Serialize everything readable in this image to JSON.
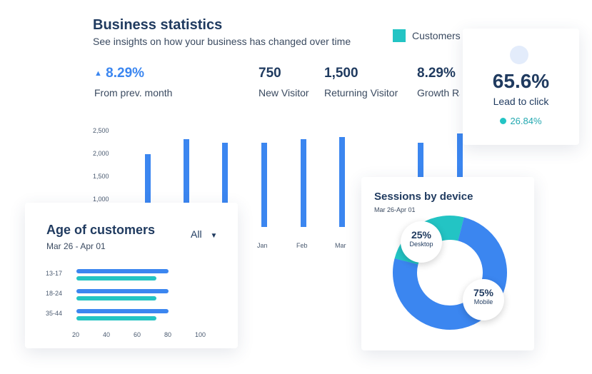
{
  "business": {
    "title": "Business statistics",
    "subtitle": "See insights on how your business has changed over time",
    "legend_label": "Customers",
    "kpis": [
      {
        "value": "8.29%",
        "label": "From prev. month",
        "trend": "up"
      },
      {
        "value": "750",
        "label": "New Visitor"
      },
      {
        "value": "1,500",
        "label": "Returning Visitor"
      },
      {
        "value": "8.29%",
        "label": "Growth Ra"
      }
    ]
  },
  "lead": {
    "value": "65.6%",
    "label": "Lead to click",
    "sub_value": "26.84%"
  },
  "age": {
    "title": "Age of customers",
    "date_range": "Mar 26 - Apr 01",
    "filter_label": "All"
  },
  "sessions": {
    "title": "Sessions by device",
    "date_range": "Mar 26-Apr 01",
    "desktop_pct": "25%",
    "desktop_label": "Desktop",
    "mobile_pct": "75%",
    "mobile_label": "Mobile"
  },
  "chart_data": [
    {
      "type": "bar",
      "title": "",
      "yticks": [
        "2,500",
        "2,000",
        "1,500",
        "1,000"
      ],
      "ylim": [
        0,
        2500
      ],
      "categories": [
        "",
        "",
        "",
        "Jan",
        "Feb",
        "Mar",
        "",
        "",
        ""
      ],
      "values": [
        1900,
        2300,
        2200,
        2200,
        2300,
        2350,
        0,
        2200,
        2450
      ],
      "colors": {
        "bar": "#3b86f0"
      }
    },
    {
      "type": "bar",
      "orientation": "horizontal",
      "categories": [
        "13-17",
        "18-24",
        "35-44"
      ],
      "xticks": [
        "20",
        "40",
        "60",
        "80",
        "100"
      ],
      "xlim": [
        20,
        100
      ],
      "series": [
        {
          "values": [
            80,
            80,
            80
          ],
          "color": "#3b86f0"
        },
        {
          "values": [
            72,
            72,
            72
          ],
          "color": "#23c4c4"
        }
      ]
    },
    {
      "type": "pie",
      "labels": [
        "Desktop",
        "Mobile"
      ],
      "values": [
        25,
        75
      ],
      "colors": [
        "#23c4c4",
        "#3b86f0"
      ]
    }
  ]
}
